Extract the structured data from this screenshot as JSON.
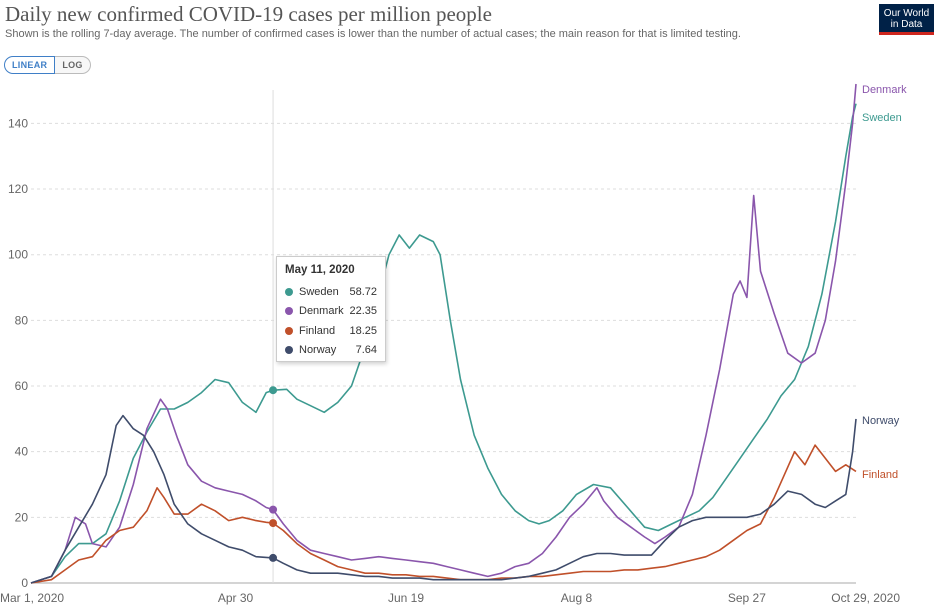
{
  "header": {
    "title": "Daily new confirmed COVID-19 cases per million people",
    "subtitle": "Shown is the rolling 7-day average. The number of confirmed cases is lower than the number of actual cases; the main reason for that is limited testing.",
    "logo_line1": "Our World",
    "logo_line2": "in Data"
  },
  "toggle": {
    "linear": "LINEAR",
    "log": "LOG",
    "selected": "LINEAR"
  },
  "tooltip": {
    "date": "May 11, 2020",
    "rows": [
      {
        "name": "Sweden",
        "value": "58.72",
        "color": "#3d9a90"
      },
      {
        "name": "Denmark",
        "value": "22.35",
        "color": "#8a56ac"
      },
      {
        "name": "Finland",
        "value": "18.25",
        "color": "#c0502a"
      },
      {
        "name": "Norway",
        "value": "7.64",
        "color": "#3f4c6b"
      }
    ]
  },
  "chart_data": {
    "type": "line",
    "title": "Daily new confirmed COVID-19 cases per million people",
    "xlabel": "",
    "ylabel": "",
    "ylim": [
      0,
      152
    ],
    "yticks": [
      0,
      20,
      40,
      60,
      80,
      100,
      120,
      140
    ],
    "x_start_day": 0,
    "x_end_day": 242,
    "x_ticks": [
      {
        "day": 0,
        "label": "Mar 1, 2020"
      },
      {
        "day": 60,
        "label": "Apr 30"
      },
      {
        "day": 110,
        "label": "Jun 19"
      },
      {
        "day": 160,
        "label": "Aug 8"
      },
      {
        "day": 210,
        "label": "Sep 27"
      },
      {
        "day": 242,
        "label": "Oct 29, 2020"
      }
    ],
    "hover_day": 71,
    "series": [
      {
        "name": "Sweden",
        "color": "#3d9a90",
        "points": [
          [
            0,
            0
          ],
          [
            6,
            2
          ],
          [
            10,
            8
          ],
          [
            14,
            12
          ],
          [
            18,
            12
          ],
          [
            22,
            15
          ],
          [
            26,
            25
          ],
          [
            30,
            38
          ],
          [
            34,
            46
          ],
          [
            38,
            53
          ],
          [
            42,
            53
          ],
          [
            46,
            55
          ],
          [
            50,
            58
          ],
          [
            54,
            62
          ],
          [
            58,
            61
          ],
          [
            62,
            55
          ],
          [
            66,
            52
          ],
          [
            69,
            58
          ],
          [
            71,
            58.72
          ],
          [
            75,
            59
          ],
          [
            78,
            56
          ],
          [
            82,
            54
          ],
          [
            86,
            52
          ],
          [
            90,
            55
          ],
          [
            94,
            60
          ],
          [
            98,
            72
          ],
          [
            102,
            88
          ],
          [
            105,
            100
          ],
          [
            108,
            106
          ],
          [
            111,
            102
          ],
          [
            114,
            106
          ],
          [
            118,
            104
          ],
          [
            120,
            100
          ],
          [
            123,
            80
          ],
          [
            126,
            62
          ],
          [
            130,
            45
          ],
          [
            134,
            35
          ],
          [
            138,
            27
          ],
          [
            142,
            22
          ],
          [
            146,
            19
          ],
          [
            149,
            18
          ],
          [
            152,
            19
          ],
          [
            156,
            22
          ],
          [
            160,
            27
          ],
          [
            165,
            30
          ],
          [
            170,
            29
          ],
          [
            175,
            23
          ],
          [
            180,
            17
          ],
          [
            184,
            16
          ],
          [
            188,
            18
          ],
          [
            192,
            20
          ],
          [
            196,
            22
          ],
          [
            200,
            26
          ],
          [
            204,
            32
          ],
          [
            208,
            38
          ],
          [
            212,
            44
          ],
          [
            216,
            50
          ],
          [
            220,
            57
          ],
          [
            224,
            62
          ],
          [
            228,
            72
          ],
          [
            232,
            88
          ],
          [
            236,
            110
          ],
          [
            239,
            130
          ],
          [
            241,
            142
          ],
          [
            242,
            146
          ]
        ]
      },
      {
        "name": "Denmark",
        "color": "#8a56ac",
        "points": [
          [
            0,
            0
          ],
          [
            6,
            2
          ],
          [
            10,
            10
          ],
          [
            13,
            20
          ],
          [
            16,
            18
          ],
          [
            18,
            12
          ],
          [
            22,
            11
          ],
          [
            26,
            17
          ],
          [
            30,
            30
          ],
          [
            34,
            47
          ],
          [
            38,
            56
          ],
          [
            40,
            53
          ],
          [
            43,
            44
          ],
          [
            46,
            36
          ],
          [
            50,
            31
          ],
          [
            54,
            29
          ],
          [
            58,
            28
          ],
          [
            62,
            27
          ],
          [
            66,
            25
          ],
          [
            69,
            23
          ],
          [
            71,
            22.35
          ],
          [
            74,
            18
          ],
          [
            78,
            13
          ],
          [
            82,
            10
          ],
          [
            86,
            9
          ],
          [
            90,
            8
          ],
          [
            94,
            7
          ],
          [
            98,
            7.5
          ],
          [
            102,
            8
          ],
          [
            106,
            7.5
          ],
          [
            110,
            7
          ],
          [
            114,
            6.5
          ],
          [
            118,
            6
          ],
          [
            122,
            5
          ],
          [
            126,
            4
          ],
          [
            130,
            3
          ],
          [
            134,
            2
          ],
          [
            138,
            3
          ],
          [
            142,
            5
          ],
          [
            146,
            6
          ],
          [
            150,
            9
          ],
          [
            154,
            14
          ],
          [
            158,
            20
          ],
          [
            162,
            24
          ],
          [
            166,
            29
          ],
          [
            168,
            25
          ],
          [
            172,
            20
          ],
          [
            176,
            17
          ],
          [
            180,
            14
          ],
          [
            183,
            12
          ],
          [
            186,
            14
          ],
          [
            190,
            17
          ],
          [
            194,
            27
          ],
          [
            198,
            45
          ],
          [
            202,
            65
          ],
          [
            206,
            88
          ],
          [
            208,
            92
          ],
          [
            210,
            87
          ],
          [
            212,
            118
          ],
          [
            214,
            95
          ],
          [
            218,
            82
          ],
          [
            222,
            70
          ],
          [
            226,
            67
          ],
          [
            230,
            70
          ],
          [
            233,
            80
          ],
          [
            236,
            98
          ],
          [
            239,
            122
          ],
          [
            241,
            140
          ],
          [
            242,
            152
          ]
        ]
      },
      {
        "name": "Finland",
        "color": "#c0502a",
        "points": [
          [
            0,
            0
          ],
          [
            6,
            1
          ],
          [
            10,
            4
          ],
          [
            14,
            7
          ],
          [
            18,
            8
          ],
          [
            22,
            13
          ],
          [
            26,
            16
          ],
          [
            30,
            17
          ],
          [
            34,
            22
          ],
          [
            37,
            29
          ],
          [
            39,
            26
          ],
          [
            42,
            21
          ],
          [
            46,
            21
          ],
          [
            50,
            24
          ],
          [
            54,
            22
          ],
          [
            58,
            19
          ],
          [
            62,
            20
          ],
          [
            66,
            19
          ],
          [
            69,
            18.5
          ],
          [
            71,
            18.25
          ],
          [
            74,
            16
          ],
          [
            78,
            12
          ],
          [
            82,
            9
          ],
          [
            86,
            7
          ],
          [
            90,
            5
          ],
          [
            94,
            4
          ],
          [
            98,
            3
          ],
          [
            102,
            3
          ],
          [
            106,
            2.5
          ],
          [
            110,
            2.5
          ],
          [
            114,
            2
          ],
          [
            118,
            2
          ],
          [
            122,
            1.5
          ],
          [
            126,
            1
          ],
          [
            130,
            1
          ],
          [
            134,
            1
          ],
          [
            138,
            1.5
          ],
          [
            142,
            1.5
          ],
          [
            146,
            2
          ],
          [
            150,
            2
          ],
          [
            154,
            2.5
          ],
          [
            158,
            3
          ],
          [
            162,
            3.5
          ],
          [
            166,
            3.5
          ],
          [
            170,
            3.5
          ],
          [
            174,
            4
          ],
          [
            178,
            4
          ],
          [
            182,
            4.5
          ],
          [
            186,
            5
          ],
          [
            190,
            6
          ],
          [
            194,
            7
          ],
          [
            198,
            8
          ],
          [
            202,
            10
          ],
          [
            206,
            13
          ],
          [
            210,
            16
          ],
          [
            214,
            18
          ],
          [
            218,
            26
          ],
          [
            221,
            33
          ],
          [
            224,
            40
          ],
          [
            227,
            36
          ],
          [
            230,
            42
          ],
          [
            233,
            38
          ],
          [
            236,
            34
          ],
          [
            239,
            36
          ],
          [
            242,
            34
          ]
        ]
      },
      {
        "name": "Norway",
        "color": "#3f4c6b",
        "points": [
          [
            0,
            0
          ],
          [
            6,
            2
          ],
          [
            10,
            10
          ],
          [
            14,
            17
          ],
          [
            18,
            24
          ],
          [
            22,
            33
          ],
          [
            25,
            48
          ],
          [
            27,
            51
          ],
          [
            30,
            47
          ],
          [
            33,
            45
          ],
          [
            36,
            40
          ],
          [
            39,
            33
          ],
          [
            42,
            24
          ],
          [
            46,
            18
          ],
          [
            50,
            15
          ],
          [
            54,
            13
          ],
          [
            58,
            11
          ],
          [
            62,
            10
          ],
          [
            66,
            8
          ],
          [
            69,
            7.8
          ],
          [
            71,
            7.64
          ],
          [
            74,
            6
          ],
          [
            78,
            4
          ],
          [
            82,
            3
          ],
          [
            86,
            3
          ],
          [
            90,
            3
          ],
          [
            94,
            2.5
          ],
          [
            98,
            2
          ],
          [
            102,
            2
          ],
          [
            106,
            1.5
          ],
          [
            110,
            1.5
          ],
          [
            114,
            1.5
          ],
          [
            118,
            1
          ],
          [
            122,
            1
          ],
          [
            126,
            1
          ],
          [
            130,
            1
          ],
          [
            134,
            1
          ],
          [
            138,
            1
          ],
          [
            142,
            1.5
          ],
          [
            146,
            2
          ],
          [
            150,
            3
          ],
          [
            154,
            4
          ],
          [
            158,
            6
          ],
          [
            162,
            8
          ],
          [
            166,
            9
          ],
          [
            170,
            9
          ],
          [
            174,
            8.5
          ],
          [
            178,
            8.5
          ],
          [
            182,
            8.5
          ],
          [
            186,
            13
          ],
          [
            190,
            17
          ],
          [
            194,
            19
          ],
          [
            198,
            20
          ],
          [
            202,
            20
          ],
          [
            206,
            20
          ],
          [
            210,
            20
          ],
          [
            214,
            21
          ],
          [
            218,
            24
          ],
          [
            222,
            28
          ],
          [
            226,
            27
          ],
          [
            230,
            24
          ],
          [
            233,
            23
          ],
          [
            236,
            25
          ],
          [
            239,
            27
          ],
          [
            241,
            40
          ],
          [
            242,
            50
          ]
        ]
      }
    ],
    "series_labels": [
      "Denmark",
      "Sweden",
      "Norway",
      "Finland"
    ]
  }
}
